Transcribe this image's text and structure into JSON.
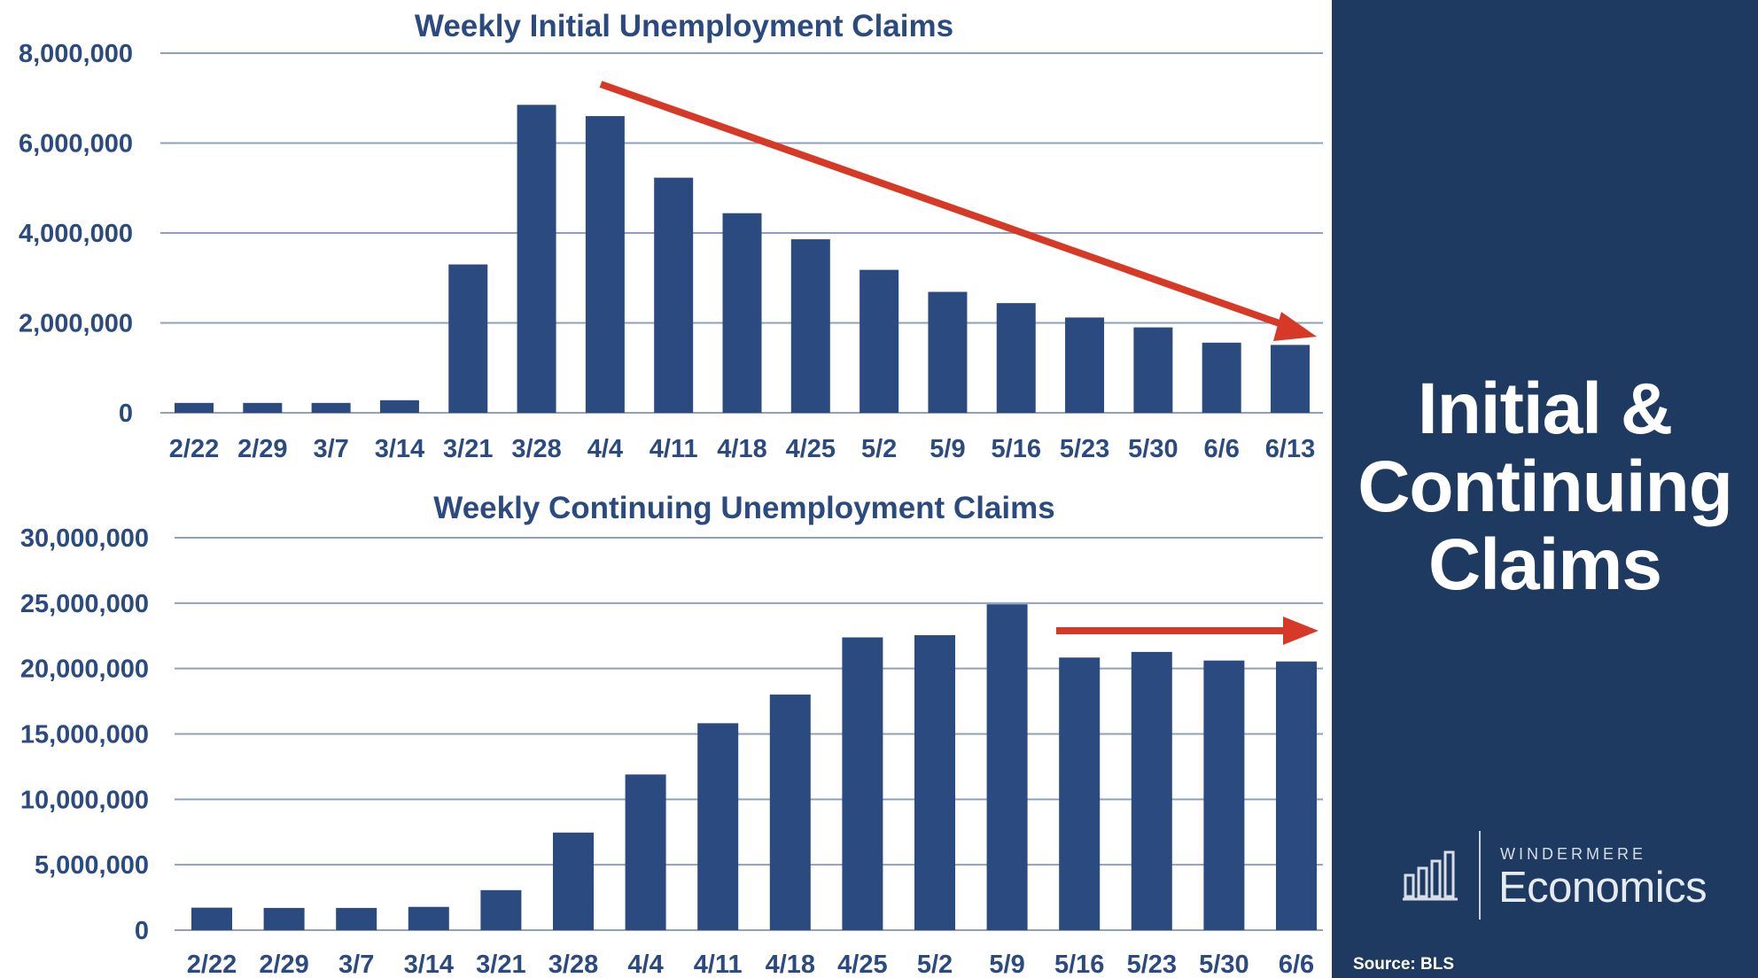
{
  "chart_data": [
    {
      "type": "bar",
      "title": "Weekly Initial Unemployment Claims",
      "categories": [
        "2/22",
        "2/29",
        "3/7",
        "3/14",
        "3/21",
        "3/28",
        "4/4",
        "4/11",
        "4/18",
        "4/25",
        "5/2",
        "5/9",
        "5/16",
        "5/23",
        "5/30",
        "6/6",
        "6/13"
      ],
      "values": [
        220000,
        220000,
        220000,
        280000,
        3300000,
        6850000,
        6600000,
        5230000,
        4440000,
        3860000,
        3180000,
        2690000,
        2440000,
        2120000,
        1900000,
        1560000,
        1510000
      ],
      "yticks": [
        "8,000,000",
        "6,000,000",
        "4,000,000",
        "2,000,000",
        "0"
      ],
      "ylim": [
        0,
        8000000
      ],
      "grid": true,
      "annotation": "downward trend arrow",
      "bar_color": "#2b4a80",
      "arrow_color": "#d63a26"
    },
    {
      "type": "bar",
      "title": "Weekly Continuing Unemployment Claims",
      "categories": [
        "2/22",
        "2/29",
        "3/7",
        "3/14",
        "3/21",
        "3/28",
        "4/4",
        "4/11",
        "4/18",
        "4/25",
        "5/2",
        "5/9",
        "5/16",
        "5/23",
        "5/30",
        "6/6"
      ],
      "values": [
        1720000,
        1700000,
        1700000,
        1780000,
        3060000,
        7460000,
        11900000,
        15820000,
        18010000,
        22380000,
        22550000,
        24910000,
        20840000,
        21270000,
        20610000,
        20540000
      ],
      "yticks": [
        "30,000,000",
        "25,000,000",
        "20,000,000",
        "15,000,000",
        "10,000,000",
        "5,000,000",
        "0"
      ],
      "ylim": [
        0,
        30000000
      ],
      "grid": true,
      "annotation": "flat trend arrow",
      "bar_color": "#2b4a80",
      "arrow_color": "#d63a26"
    }
  ],
  "side_panel": {
    "title_lines": [
      "Initial &",
      "Continuing",
      "Claims"
    ],
    "brand_small": "WINDERMERE",
    "brand_big": "Economics",
    "source": "Source: BLS",
    "background": "#1f3a60",
    "icon": "bar-chart-logo-icon"
  }
}
